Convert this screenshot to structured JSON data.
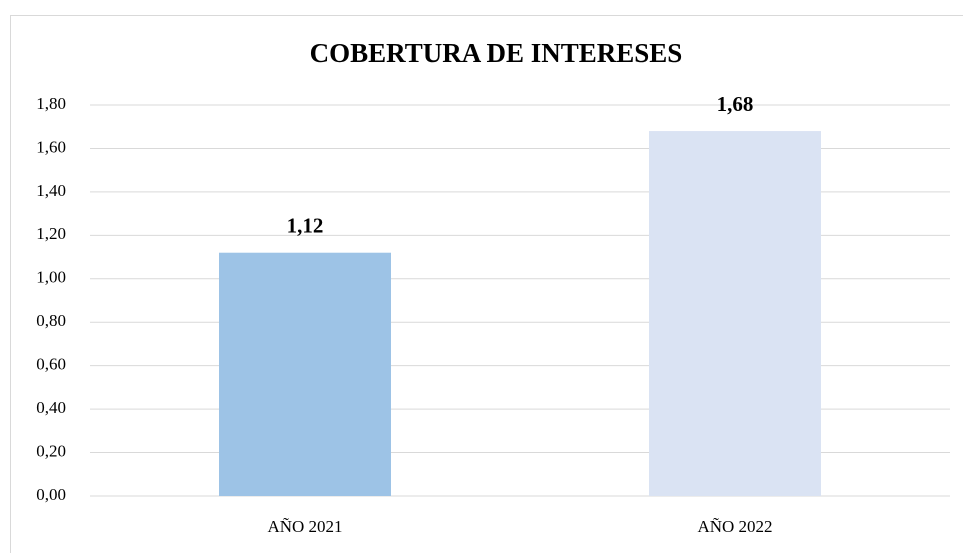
{
  "chart_data": {
    "type": "bar",
    "title": "COBERTURA DE INTERESES",
    "categories": [
      "AÑO 2021",
      "AÑO 2022"
    ],
    "values": [
      1.12,
      1.68
    ],
    "value_labels": [
      "1,12",
      "1,68"
    ],
    "colors": [
      "#9dc3e6",
      "#dae3f3"
    ],
    "ylim": [
      0,
      1.8
    ],
    "yticks": [
      {
        "value": 0,
        "label": "0,00"
      },
      {
        "value": 0.2,
        "label": "0,20"
      },
      {
        "value": 0.4,
        "label": "0,40"
      },
      {
        "value": 0.6,
        "label": "0,60"
      },
      {
        "value": 0.8,
        "label": "0,80"
      },
      {
        "value": 1.0,
        "label": "1,00"
      },
      {
        "value": 1.2,
        "label": "1,20"
      },
      {
        "value": 1.4,
        "label": "1,40"
      },
      {
        "value": 1.6,
        "label": "1,60"
      },
      {
        "value": 1.8,
        "label": "1,80"
      }
    ],
    "grid": true
  }
}
